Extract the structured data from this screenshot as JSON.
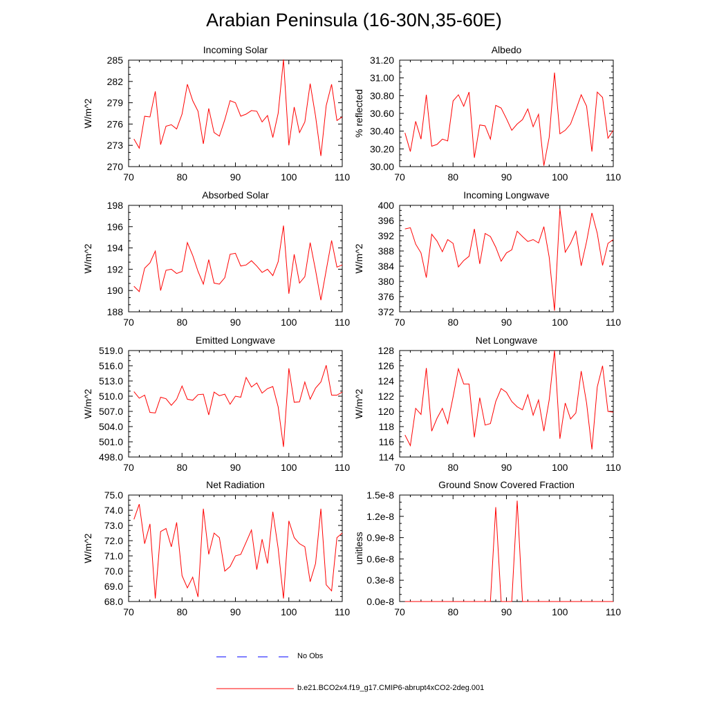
{
  "title": "Arabian Peninsula (16-30N,35-60E)",
  "colors": {
    "model_line": "#ff0000",
    "obs_line": "#0000ff",
    "axis": "#000000"
  },
  "legend": [
    {
      "label": "No Obs",
      "style": "dashed",
      "color": "#0000ff"
    },
    {
      "label": "b.e21.BCO2x4.f19_g17.CMIP6-abrupt4xCO2-2deg.001",
      "style": "solid",
      "color": "#ff0000"
    }
  ],
  "chart_data": [
    {
      "type": "line",
      "title": "Incoming Solar",
      "ylabel": "W/m^2",
      "xlim": [
        70,
        110
      ],
      "ylim": [
        270,
        285
      ],
      "xticks": [
        "70",
        "80",
        "90",
        "100",
        "110"
      ],
      "yticks": [
        "270",
        "273",
        "276",
        "279",
        "282",
        "285"
      ],
      "x": [
        71,
        72,
        73,
        74,
        75,
        76,
        77,
        78,
        79,
        80,
        81,
        82,
        83,
        84,
        85,
        86,
        87,
        88,
        89,
        90,
        91,
        92,
        93,
        94,
        95,
        96,
        97,
        98,
        99,
        100,
        101,
        102,
        103,
        104,
        105,
        106,
        107,
        108,
        109,
        110
      ],
      "series": [
        {
          "values": [
            273.9,
            272.6,
            277.1,
            277.0,
            280.6,
            273.1,
            275.7,
            275.9,
            275.3,
            277.4,
            281.6,
            279.3,
            277.8,
            273.2,
            278.2,
            274.8,
            274.3,
            276.6,
            279.3,
            279.0,
            277.1,
            277.4,
            277.9,
            277.8,
            276.3,
            277.2,
            274.1,
            277.5,
            285.1,
            273.0,
            278.4,
            274.8,
            276.3,
            281.7,
            277.1,
            271.5,
            278.6,
            281.6,
            276.5,
            277.0
          ]
        }
      ]
    },
    {
      "type": "line",
      "title": "Albedo",
      "ylabel": "% reflected",
      "xlim": [
        70,
        110
      ],
      "ylim": [
        30.0,
        31.2
      ],
      "xticks": [
        "70",
        "80",
        "90",
        "100",
        "110"
      ],
      "yticks": [
        "30.00",
        "30.20",
        "30.40",
        "30.60",
        "30.80",
        "31.00",
        "31.20"
      ],
      "x": [
        71,
        72,
        73,
        74,
        75,
        76,
        77,
        78,
        79,
        80,
        81,
        82,
        83,
        84,
        85,
        86,
        87,
        88,
        89,
        90,
        91,
        92,
        93,
        94,
        95,
        96,
        97,
        98,
        99,
        100,
        101,
        102,
        103,
        104,
        105,
        106,
        107,
        108,
        109,
        110
      ],
      "series": [
        {
          "values": [
            30.38,
            30.17,
            30.51,
            30.31,
            30.81,
            30.23,
            30.25,
            30.31,
            30.29,
            30.74,
            30.81,
            30.68,
            30.84,
            30.1,
            30.47,
            30.46,
            30.31,
            30.69,
            30.66,
            30.54,
            30.41,
            30.48,
            30.53,
            30.65,
            30.45,
            30.59,
            30.01,
            30.33,
            31.06,
            30.37,
            30.41,
            30.48,
            30.64,
            30.81,
            30.68,
            30.17,
            30.84,
            30.78,
            30.32,
            30.41
          ]
        }
      ]
    },
    {
      "type": "line",
      "title": "Absorbed Solar",
      "ylabel": "W/m^2",
      "xlim": [
        70,
        110
      ],
      "ylim": [
        188,
        198
      ],
      "xticks": [
        "70",
        "80",
        "90",
        "100",
        "110"
      ],
      "yticks": [
        "188",
        "190",
        "192",
        "194",
        "196",
        "198"
      ],
      "x": [
        71,
        72,
        73,
        74,
        75,
        76,
        77,
        78,
        79,
        80,
        81,
        82,
        83,
        84,
        85,
        86,
        87,
        88,
        89,
        90,
        91,
        92,
        93,
        94,
        95,
        96,
        97,
        98,
        99,
        100,
        101,
        102,
        103,
        104,
        105,
        106,
        107,
        108,
        109,
        110
      ],
      "series": [
        {
          "values": [
            190.4,
            189.9,
            192.1,
            192.6,
            193.7,
            190.0,
            191.9,
            192.0,
            191.6,
            191.8,
            194.5,
            193.3,
            191.8,
            190.6,
            192.9,
            190.7,
            190.6,
            191.2,
            193.4,
            193.5,
            192.3,
            192.4,
            192.8,
            192.3,
            191.7,
            192.0,
            191.4,
            192.7,
            196.1,
            189.7,
            193.4,
            190.7,
            191.3,
            194.5,
            191.9,
            189.1,
            191.9,
            194.7,
            192.2,
            192.4
          ]
        }
      ]
    },
    {
      "type": "line",
      "title": "Incoming Longwave",
      "ylabel": "W/m^2",
      "xlim": [
        70,
        110
      ],
      "ylim": [
        372,
        400
      ],
      "xticks": [
        "70",
        "80",
        "90",
        "100",
        "110"
      ],
      "yticks": [
        "372",
        "376",
        "380",
        "384",
        "388",
        "392",
        "396",
        "400"
      ],
      "x": [
        71,
        72,
        73,
        74,
        75,
        76,
        77,
        78,
        79,
        80,
        81,
        82,
        83,
        84,
        85,
        86,
        87,
        88,
        89,
        90,
        91,
        92,
        93,
        94,
        95,
        96,
        97,
        98,
        99,
        100,
        101,
        102,
        103,
        104,
        105,
        106,
        107,
        108,
        109,
        110
      ],
      "series": [
        {
          "values": [
            393.8,
            394.1,
            389.8,
            387.5,
            381.0,
            392.4,
            390.6,
            387.8,
            391.0,
            390.0,
            383.8,
            385.5,
            386.6,
            393.8,
            384.6,
            392.6,
            391.8,
            389.0,
            385.3,
            387.5,
            388.3,
            393.2,
            391.8,
            390.5,
            391.0,
            390.1,
            394.4,
            386.4,
            372.3,
            399.1,
            387.7,
            390.0,
            393.2,
            384.1,
            390.5,
            398.0,
            392.7,
            384.2,
            390.0,
            391.0
          ]
        }
      ]
    },
    {
      "type": "line",
      "title": "Emitted Longwave",
      "ylabel": "W/m^2",
      "xlim": [
        70,
        110
      ],
      "ylim": [
        498.0,
        519.0
      ],
      "xticks": [
        "70",
        "80",
        "90",
        "100",
        "110"
      ],
      "yticks": [
        "498.0",
        "501.0",
        "504.0",
        "507.0",
        "510.0",
        "513.0",
        "516.0",
        "519.0"
      ],
      "x": [
        71,
        72,
        73,
        74,
        75,
        76,
        77,
        78,
        79,
        80,
        81,
        82,
        83,
        84,
        85,
        86,
        87,
        88,
        89,
        90,
        91,
        92,
        93,
        94,
        95,
        96,
        97,
        98,
        99,
        100,
        101,
        102,
        103,
        104,
        105,
        106,
        107,
        108,
        109,
        110
      ],
      "series": [
        {
          "values": [
            510.9,
            509.6,
            510.2,
            506.8,
            506.7,
            509.8,
            509.5,
            508.2,
            509.4,
            512.0,
            509.4,
            509.2,
            510.3,
            510.4,
            506.3,
            510.8,
            510.1,
            510.4,
            508.4,
            510.0,
            509.8,
            513.7,
            511.8,
            512.6,
            510.6,
            511.5,
            511.9,
            507.9,
            500.0,
            515.5,
            508.8,
            508.9,
            512.8,
            509.4,
            511.6,
            512.8,
            516.1,
            510.2,
            510.2,
            510.8
          ]
        }
      ]
    },
    {
      "type": "line",
      "title": "Net Longwave",
      "ylabel": "W/m^2",
      "xlim": [
        70,
        110
      ],
      "ylim": [
        114,
        128
      ],
      "xticks": [
        "70",
        "80",
        "90",
        "100",
        "110"
      ],
      "yticks": [
        "114",
        "116",
        "118",
        "120",
        "122",
        "124",
        "126",
        "128"
      ],
      "x": [
        71,
        72,
        73,
        74,
        75,
        76,
        77,
        78,
        79,
        80,
        81,
        82,
        83,
        84,
        85,
        86,
        87,
        88,
        89,
        90,
        91,
        92,
        93,
        94,
        95,
        96,
        97,
        98,
        99,
        100,
        101,
        102,
        103,
        104,
        105,
        106,
        107,
        108,
        109,
        110
      ],
      "series": [
        {
          "values": [
            116.9,
            115.5,
            120.4,
            119.6,
            125.7,
            117.4,
            119.1,
            120.4,
            118.4,
            121.9,
            125.6,
            123.6,
            123.6,
            116.6,
            121.8,
            118.2,
            118.4,
            121.3,
            123.0,
            122.5,
            121.3,
            120.6,
            120.2,
            122.2,
            119.5,
            121.5,
            117.4,
            121.5,
            128.0,
            116.4,
            121.1,
            119.0,
            119.8,
            125.3,
            121.1,
            115.0,
            123.2,
            126.0,
            120.0,
            119.9
          ]
        }
      ]
    },
    {
      "type": "line",
      "title": "Net Radiation",
      "ylabel": "W/m^2",
      "xlim": [
        70,
        110
      ],
      "ylim": [
        68.0,
        75.0
      ],
      "xticks": [
        "70",
        "80",
        "90",
        "100",
        "110"
      ],
      "yticks": [
        "68.0",
        "69.0",
        "70.0",
        "71.0",
        "72.0",
        "73.0",
        "74.0",
        "75.0"
      ],
      "x": [
        71,
        72,
        73,
        74,
        75,
        76,
        77,
        78,
        79,
        80,
        81,
        82,
        83,
        84,
        85,
        86,
        87,
        88,
        89,
        90,
        91,
        92,
        93,
        94,
        95,
        96,
        97,
        98,
        99,
        100,
        101,
        102,
        103,
        104,
        105,
        106,
        107,
        108,
        109,
        110
      ],
      "series": [
        {
          "values": [
            73.4,
            74.4,
            71.8,
            73.1,
            68.2,
            72.6,
            72.8,
            71.6,
            73.2,
            69.7,
            68.9,
            69.6,
            68.3,
            74.1,
            71.1,
            72.5,
            72.2,
            70.0,
            70.3,
            71.0,
            71.1,
            71.9,
            72.7,
            70.1,
            72.1,
            70.5,
            73.9,
            71.5,
            68.2,
            73.3,
            72.2,
            71.8,
            71.6,
            69.3,
            70.5,
            74.1,
            69.1,
            68.7,
            72.2,
            72.5
          ]
        }
      ]
    },
    {
      "type": "line",
      "title": "Ground Snow Covered Fraction",
      "ylabel": "unitless",
      "xlim": [
        70,
        110
      ],
      "ylim": [
        0,
        1.5e-08
      ],
      "xticks": [
        "70",
        "80",
        "90",
        "100",
        "110"
      ],
      "yticks": [
        "0.0e-8",
        "0.3e-8",
        "0.6e-8",
        "0.9e-8",
        "1.2e-8",
        "1.5e-8"
      ],
      "x": [
        71,
        72,
        73,
        74,
        75,
        76,
        77,
        78,
        79,
        80,
        81,
        82,
        83,
        84,
        85,
        86,
        87,
        88,
        89,
        90,
        91,
        92,
        93,
        94,
        95,
        96,
        97,
        98,
        99,
        100,
        101,
        102,
        103,
        104,
        105,
        106,
        107,
        108,
        109,
        110
      ],
      "series": [
        {
          "values": [
            0,
            0,
            0,
            0,
            0,
            0,
            0,
            0,
            0,
            0,
            0,
            0,
            0,
            0,
            0,
            0,
            0,
            1.33e-08,
            0,
            0,
            0,
            1.42e-08,
            0,
            0,
            0,
            0,
            0,
            0,
            0,
            0,
            0,
            0,
            0,
            0,
            0,
            0,
            0,
            0,
            0,
            0
          ]
        }
      ]
    }
  ]
}
